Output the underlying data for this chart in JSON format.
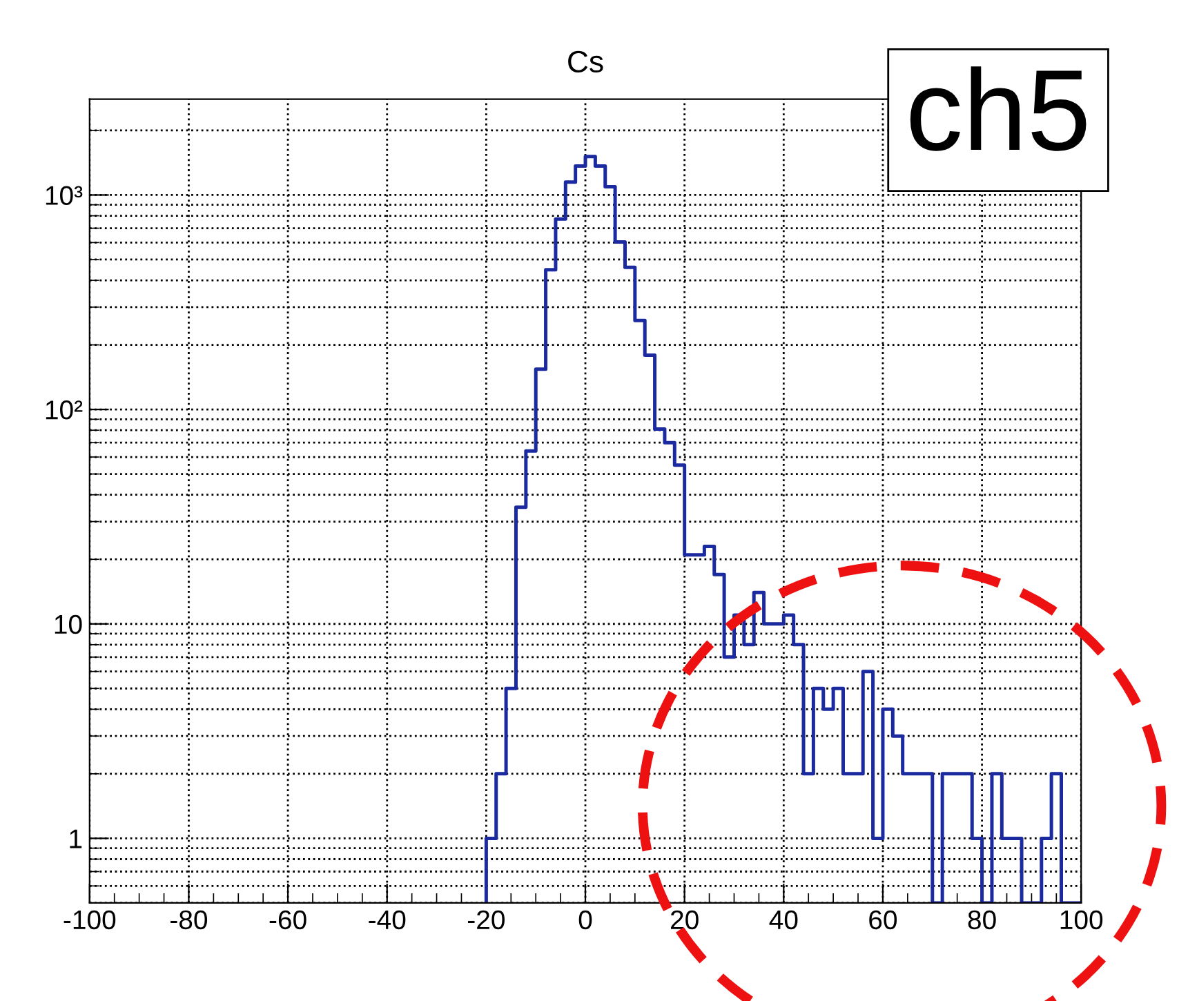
{
  "chart_data": {
    "type": "histogram",
    "title": "Cs",
    "annotations": [
      "ch5"
    ],
    "color": "#1c2aa0",
    "bins": [
      -20,
      -18,
      -16,
      -14,
      -12,
      -10,
      -8,
      -6,
      -4,
      -2,
      0,
      2,
      4,
      6,
      8,
      10,
      12,
      14,
      16,
      18,
      20,
      22,
      24,
      26,
      28,
      30,
      32,
      34,
      36,
      38,
      40,
      42,
      44,
      46,
      48,
      50,
      52,
      54,
      56,
      58,
      60,
      62,
      64,
      66,
      68,
      70,
      72,
      74,
      76,
      78,
      80,
      82,
      84,
      86,
      88,
      90,
      92,
      94,
      96,
      98,
      100
    ],
    "values": [
      1,
      2,
      5,
      35,
      64,
      154,
      448,
      773,
      1148,
      1366,
      1510,
      1366,
      1093,
      604,
      460,
      260,
      179,
      81,
      70,
      55,
      21,
      21,
      23,
      17,
      7,
      11,
      8,
      14,
      10,
      10,
      11,
      8,
      2,
      5,
      4,
      5,
      2,
      2,
      6,
      1,
      4,
      3,
      2,
      2,
      2,
      null,
      2,
      2,
      2,
      1,
      null,
      2,
      1,
      1,
      null,
      null,
      1,
      2,
      null,
      null
    ],
    "xlim": [
      -100,
      100
    ],
    "xticks": [
      -100,
      -80,
      -60,
      -40,
      -20,
      0,
      20,
      40,
      60,
      80,
      100
    ],
    "ylim": [
      0.5,
      2800
    ],
    "yticks": [
      {
        "value": 1,
        "label": "1"
      },
      {
        "value": 10,
        "label": "10"
      },
      {
        "value": 100,
        "label": "10²"
      },
      {
        "value": 1000,
        "label": "10³"
      }
    ],
    "log": true,
    "grid": true
  }
}
